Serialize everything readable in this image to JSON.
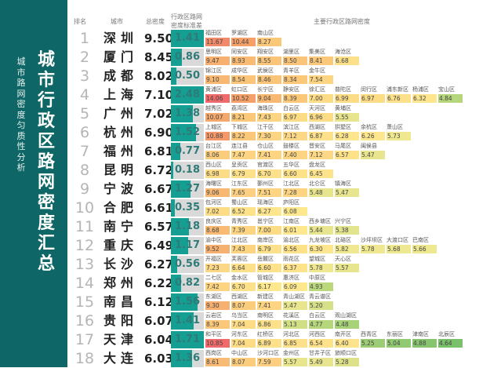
{
  "sidebar": {
    "title": "城市行政区路网密度汇总",
    "subtitle": "城市路网密度匀质性分析"
  },
  "header": {
    "rank": "排名",
    "city": "城市",
    "total": "总密度",
    "std": "行政区路网密度标准差",
    "districts": "主要行政区路网密度"
  },
  "chart_data": {
    "type": "table",
    "title": "城市行政区路网密度汇总",
    "subtitle": "城市路网密度匀质性分析",
    "columns": [
      "排名",
      "城市",
      "总密度",
      "行政区路网密度标准差",
      "主要行政区路网密度"
    ],
    "rows": [
      {
        "rank": "1",
        "city": "深圳",
        "total": "9.50",
        "std": "1.41",
        "fill": 100,
        "districts": [
          [
            "福田区",
            "11.67",
            "#f08a6a"
          ],
          [
            "罗湖区",
            "10.44",
            "#f4a068"
          ],
          [
            "南山区",
            "8.27",
            "#fbc87a"
          ]
        ]
      },
      {
        "rank": "2",
        "city": "厦门",
        "total": "8.45",
        "std": "0.86",
        "fill": 33,
        "districts": [
          [
            "思明区",
            "9.47",
            "#f6b070"
          ],
          [
            "同安区",
            "8.93",
            "#f9bb74"
          ],
          [
            "翔安区",
            "8.55",
            "#fac578"
          ],
          [
            "湖里区",
            "8.50",
            "#fac578"
          ],
          [
            "集美区",
            "8.41",
            "#fbc87a"
          ],
          [
            "海沧区",
            "6.68",
            "#fde08a"
          ]
        ]
      },
      {
        "rank": "3",
        "city": "成都",
        "total": "8.02",
        "std": "0.50",
        "fill": 16,
        "districts": [
          [
            "锦江区",
            "9.10",
            "#f8b872"
          ],
          [
            "成华区",
            "8.54",
            "#fac578"
          ],
          [
            "武侯区",
            "8.46",
            "#fac578"
          ],
          [
            "青羊区",
            "8.34",
            "#fbc87a"
          ],
          [
            "金牛区",
            "7.54",
            "#fcd482"
          ]
        ]
      },
      {
        "rank": "4",
        "city": "上海",
        "total": "7.10",
        "std": "2.48",
        "fill": 100,
        "districts": [
          [
            "黄浦区",
            "14.06",
            "#ef6a6a"
          ],
          [
            "虹口区",
            "10.52",
            "#f4a068"
          ],
          [
            "长宁区",
            "9.04",
            "#f8b872"
          ],
          [
            "静安区",
            "8.39",
            "#fbc87a"
          ],
          [
            "徐汇区",
            "7.00",
            "#fddc86"
          ],
          [
            "普陀区",
            "6.99",
            "#fddc86"
          ],
          [
            "闵行区",
            "6.97",
            "#fddc86"
          ],
          [
            "浦东新区",
            "6.76",
            "#fde08a"
          ],
          [
            "杨浦区",
            "6.32",
            "#fde68e"
          ],
          [
            "宝山区",
            "4.84",
            "#b5d67a"
          ]
        ]
      },
      {
        "rank": "5",
        "city": "广州",
        "total": "7.02",
        "std": "1.38",
        "fill": 67,
        "districts": [
          [
            "越秀区",
            "10.07",
            "#f5a86c"
          ],
          [
            "荔湾区",
            "8.21",
            "#fbc87a"
          ],
          [
            "海珠区",
            "7.43",
            "#fcd482"
          ],
          [
            "白云区",
            "6.97",
            "#fddc86"
          ],
          [
            "天河区",
            "6.96",
            "#fddc86"
          ],
          [
            "黄埔区",
            "5.55",
            "#e7e68e"
          ]
        ]
      },
      {
        "rank": "6",
        "city": "杭州",
        "total": "6.90",
        "std": "1.52",
        "fill": 76,
        "districts": [
          [
            "上城区",
            "10.88",
            "#f4986a"
          ],
          [
            "下城区",
            "8.22",
            "#fbc87a"
          ],
          [
            "江干区",
            "7.30",
            "#fcd482"
          ],
          [
            "滨江区",
            "7.12",
            "#fcd886"
          ],
          [
            "西湖区",
            "6.87",
            "#fde08a"
          ],
          [
            "拱墅区",
            "6.28",
            "#fde68e"
          ],
          [
            "余杭区",
            "6.26",
            "#fde68e"
          ],
          [
            "萧山区",
            "5.73",
            "#f0e890"
          ]
        ]
      },
      {
        "rank": "7",
        "city": "福州",
        "total": "6.81",
        "std": "0.77",
        "fill": 28,
        "districts": [
          [
            "台江区",
            "8.06",
            "#fbcc7c"
          ],
          [
            "连江县",
            "7.47",
            "#fcd482"
          ],
          [
            "仓山区",
            "7.41",
            "#fcd482"
          ],
          [
            "鼓楼区",
            "7.40",
            "#fcd482"
          ],
          [
            "晋安区",
            "7.12",
            "#fcd886"
          ],
          [
            "马尾区",
            "6.57",
            "#fde28a"
          ],
          [
            "闽侯县",
            "5.47",
            "#e7e68e"
          ]
        ]
      },
      {
        "rank": "8",
        "city": "昆明",
        "total": "6.72",
        "std": "0.18",
        "fill": 6,
        "districts": [
          [
            "西山区",
            "6.98",
            "#fddc86"
          ],
          [
            "呈贡区",
            "6.79",
            "#fde08a"
          ],
          [
            "官渡区",
            "6.70",
            "#fde08a"
          ],
          [
            "五华区",
            "6.60",
            "#fde28a"
          ],
          [
            "盘龙区",
            "6.45",
            "#fde48c"
          ]
        ]
      },
      {
        "rank": "9",
        "city": "宁波",
        "total": "6.67",
        "std": "1.27",
        "fill": 60,
        "districts": [
          [
            "海曙区",
            "9.06",
            "#f8b872"
          ],
          [
            "江东区",
            "7.65",
            "#fcd080"
          ],
          [
            "鄞州区",
            "7.51",
            "#fcd482"
          ],
          [
            "江北区",
            "7.28",
            "#fcd482"
          ],
          [
            "北仑区",
            "5.48",
            "#e7e68e"
          ],
          [
            "镇海区",
            "5.47",
            "#e7e68e"
          ]
        ]
      },
      {
        "rank": "10",
        "city": "合肥",
        "total": "6.61",
        "std": "0.35",
        "fill": 12,
        "districts": [
          [
            "包河区",
            "7.02",
            "#fddc86"
          ],
          [
            "蜀山区",
            "6.52",
            "#fde28a"
          ],
          [
            "瑶海区",
            "6.27",
            "#fde68e"
          ],
          [
            "庐阳区",
            "6.08",
            "#fde88e"
          ]
        ]
      },
      {
        "rank": "11",
        "city": "南宁",
        "total": "6.57",
        "std": "1.18",
        "fill": 54,
        "districts": [
          [
            "良庆区",
            "8.68",
            "#f9bb74"
          ],
          [
            "青秀区",
            "7.39",
            "#fcd482"
          ],
          [
            "邕宁区",
            "7.00",
            "#fddc86"
          ],
          [
            "江南区",
            "6.01",
            "#fde88e"
          ],
          [
            "西乡塘区",
            "5.44",
            "#e7e68e"
          ],
          [
            "兴宁区",
            "5.38",
            "#e2e48e"
          ]
        ]
      },
      {
        "rank": "12",
        "city": "重庆",
        "total": "6.49",
        "std": "1.17",
        "fill": 53,
        "districts": [
          [
            "渝中区",
            "9.52",
            "#f6b070"
          ],
          [
            "江北区",
            "7.43",
            "#fcd482"
          ],
          [
            "南岸区",
            "6.79",
            "#fde08a"
          ],
          [
            "渝北区",
            "6.56",
            "#fde28a"
          ],
          [
            "九龙坡区",
            "6.30",
            "#fde68e"
          ],
          [
            "北碚区",
            "5.82",
            "#f0e890"
          ],
          [
            "沙坪坝区",
            "5.78",
            "#f0e890"
          ],
          [
            "大渡口区",
            "5.68",
            "#eee890"
          ],
          [
            "巴南区",
            "5.66",
            "#eee890"
          ]
        ]
      },
      {
        "rank": "13",
        "city": "长沙",
        "total": "6.27",
        "std": "0.56",
        "fill": 18,
        "districts": [
          [
            "开福区",
            "7.23",
            "#fcd886"
          ],
          [
            "芙蓉区",
            "6.64",
            "#fde08a"
          ],
          [
            "岳麓区",
            "6.60",
            "#fde28a"
          ],
          [
            "雨花区",
            "6.37",
            "#fde48c"
          ],
          [
            "望城区",
            "5.78",
            "#f0e890"
          ],
          [
            "天心区",
            "5.57",
            "#e7e68e"
          ]
        ]
      },
      {
        "rank": "14",
        "city": "郑州",
        "total": "6.22",
        "std": "0.82",
        "fill": 31,
        "districts": [
          [
            "二七区",
            "7.42",
            "#fcd482"
          ],
          [
            "金水区",
            "6.70",
            "#fde08a"
          ],
          [
            "管城区",
            "6.17",
            "#fde88e"
          ],
          [
            "惠济区",
            "6.09",
            "#fde88e"
          ],
          [
            "中原区",
            "4.93",
            "#bcd87c"
          ]
        ]
      },
      {
        "rank": "15",
        "city": "南昌",
        "total": "6.12",
        "std": "1.56",
        "fill": 80,
        "districts": [
          [
            "东湖区",
            "9.30",
            "#f6b070"
          ],
          [
            "西湖区",
            "8.07",
            "#fbcc7c"
          ],
          [
            "新建区",
            "7.41",
            "#fcd482"
          ],
          [
            "青山湖区",
            "5.47",
            "#e7e68e"
          ],
          [
            "青云谱区",
            "5.20",
            "#d6e088"
          ]
        ]
      },
      {
        "rank": "16",
        "city": "贵阳",
        "total": "6.07",
        "std": "1.41",
        "fill": 70,
        "districts": [
          [
            "云岩区",
            "8.39",
            "#fbc87a"
          ],
          [
            "乌当区",
            "7.04",
            "#fddc86"
          ],
          [
            "南明区",
            "6.86",
            "#fde08a"
          ],
          [
            "花溪区",
            "5.13",
            "#d0de86"
          ],
          [
            "白云区",
            "4.77",
            "#b5d67a"
          ],
          [
            "观山湖区",
            "4.48",
            "#a8d278"
          ]
        ]
      },
      {
        "rank": "17",
        "city": "天津",
        "total": "6.04",
        "std": "1.71",
        "fill": 100,
        "districts": [
          [
            "和平区",
            "10.85",
            "#ef6a6a"
          ],
          [
            "河东区",
            "7.04",
            "#fddc86"
          ],
          [
            "红桥区",
            "6.89",
            "#fde08a"
          ],
          [
            "河北区",
            "6.85",
            "#fde08a"
          ],
          [
            "河西区",
            "6.54",
            "#fde28a"
          ],
          [
            "南开区",
            "6.40",
            "#fde48c"
          ],
          [
            "西青区",
            "5.25",
            "#9ccd74"
          ],
          [
            "东丽区",
            "5.04",
            "#92ca72"
          ],
          [
            "津南区",
            "4.88",
            "#86c56e"
          ],
          [
            "北辰区",
            "4.64",
            "#78c06a"
          ]
        ]
      },
      {
        "rank": "18",
        "city": "大连",
        "total": "6.03",
        "std": "1.36",
        "fill": 65,
        "districts": [
          [
            "西岗区",
            "8.61",
            "#f9bb74"
          ],
          [
            "中山区",
            "8.07",
            "#fbcc7c"
          ],
          [
            "沙河口区",
            "7.59",
            "#fcd080"
          ],
          [
            "金州区",
            "5.57",
            "#e7e68e"
          ],
          [
            "甘井子区",
            "5.49",
            "#e7e68e"
          ],
          [
            "旅顺口区",
            "5.28",
            "#dde28a"
          ]
        ]
      }
    ]
  }
}
